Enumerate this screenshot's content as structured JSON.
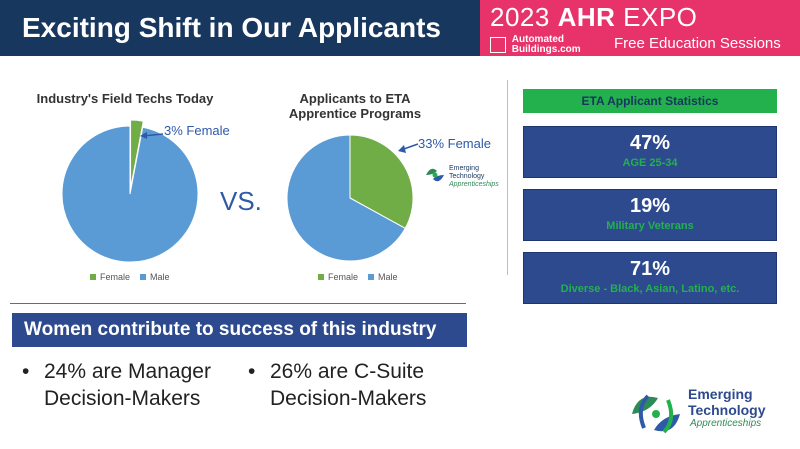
{
  "header": {
    "title": "Exciting Shift in Our Applicants",
    "expo_year": "2023",
    "expo_name_bold": "AHR",
    "expo_name": "EXPO",
    "sponsor_line1": "Automated",
    "sponsor_line2": "Buildings.com",
    "sessions": "Free Education Sessions"
  },
  "vs_label": "VS.",
  "chart_data": [
    {
      "type": "pie",
      "title": "Industry's Field Techs Today",
      "categories": [
        "Female",
        "Male"
      ],
      "values": [
        3,
        97
      ],
      "colors": [
        "#70ad47",
        "#5b9bd5"
      ],
      "annotation": "3% Female"
    },
    {
      "type": "pie",
      "title": "Applicants to ETA Apprentice Programs",
      "title_line1": "Applicants to ETA",
      "title_line2": "Apprentice Programs",
      "categories": [
        "Female",
        "Male"
      ],
      "values": [
        33,
        67
      ],
      "colors": [
        "#70ad47",
        "#5b9bd5"
      ],
      "annotation": "33% Female"
    }
  ],
  "stats": {
    "header": "ETA Applicant Statistics",
    "items": [
      {
        "value": "47%",
        "label": "AGE 25-34"
      },
      {
        "value": "19%",
        "label": "Military Veterans"
      },
      {
        "value": "71%",
        "label": "Diverse  - Black, Asian, Latino, etc."
      }
    ]
  },
  "women": {
    "banner": "Women contribute to success of this industry",
    "bullet1_line1": "24% are Manager",
    "bullet1_line2": "Decision-Makers",
    "bullet2_line1": "26% are C-Suite",
    "bullet2_line2": "Decision-Makers"
  },
  "logo": {
    "line1": "Emerging",
    "line2": "Technology",
    "line3": "Apprenticeships"
  },
  "colors": {
    "navy": "#17375e",
    "pink": "#e8336a",
    "green": "#22b14c",
    "box_blue": "#2e4a8f",
    "pie_female": "#70ad47",
    "pie_male": "#5b9bd5"
  }
}
